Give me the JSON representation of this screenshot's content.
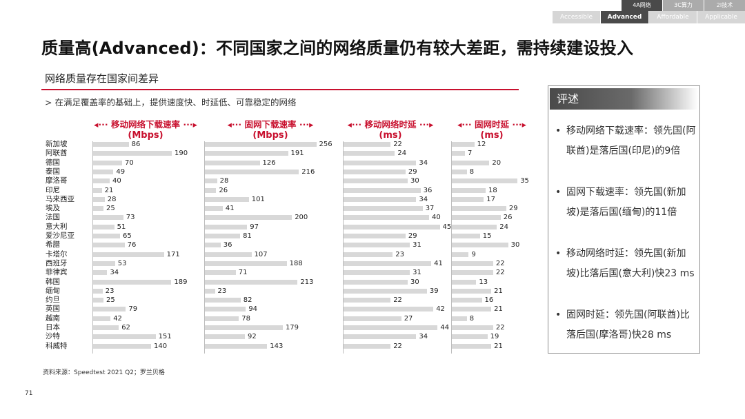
{
  "nav": {
    "top": [
      "4A网络",
      "3C算力",
      "2I技术"
    ],
    "top_active": 0,
    "bottom": [
      "Accessible",
      "Advanced",
      "Affordable",
      "Applicable"
    ],
    "bottom_active": 1
  },
  "title": "质量高(Advanced)：不同国家之间的网络质量仍有较大差距，需持续建设投入",
  "section_title": "网络质量存在国家间差异",
  "subtitle": "> 在满足覆盖率的基础上，提供速度快、时延低、可靠稳定的网络",
  "chart_data": {
    "type": "bar",
    "orientation": "horizontal",
    "categories": [
      "新加坡",
      "阿联酋",
      "德国",
      "泰国",
      "摩洛哥",
      "印尼",
      "马来西亚",
      "埃及",
      "法国",
      "意大利",
      "爱沙尼亚",
      "希腊",
      "卡塔尔",
      "西班牙",
      "菲律宾",
      "韩国",
      "缅甸",
      "约旦",
      "英国",
      "越南",
      "日本",
      "沙特",
      "科威特"
    ],
    "series": [
      {
        "name": "移动网络下载速率",
        "unit": "(Mbps)",
        "values": [
          86,
          190,
          70,
          49,
          40,
          21,
          28,
          25,
          73,
          51,
          65,
          76,
          171,
          53,
          34,
          189,
          23,
          25,
          79,
          42,
          62,
          151,
          140
        ]
      },
      {
        "name": "固网下载速率",
        "unit": "(Mbps)",
        "values": [
          256,
          191,
          126,
          216,
          28,
          26,
          101,
          41,
          200,
          97,
          81,
          36,
          107,
          188,
          71,
          213,
          23,
          82,
          94,
          78,
          179,
          92,
          143
        ]
      },
      {
        "name": "移动网络时延",
        "unit": "(ms)",
        "values": [
          22,
          24,
          34,
          29,
          30,
          36,
          34,
          37,
          40,
          45,
          29,
          31,
          23,
          41,
          31,
          30,
          39,
          22,
          42,
          27,
          44,
          34,
          22
        ]
      },
      {
        "name": "固网时延",
        "unit": "(ms)",
        "values": [
          12,
          7,
          20,
          8,
          35,
          18,
          17,
          29,
          26,
          24,
          15,
          30,
          9,
          22,
          22,
          13,
          21,
          16,
          21,
          8,
          22,
          19,
          21
        ]
      }
    ]
  },
  "source": "资料来源：Speedtest 2021 Q2；罗兰贝格",
  "page_number": "71",
  "summary": {
    "title": "评述",
    "bullet": "•",
    "items": [
      "移动网络下载速率：领先国(阿联酋)是落后国(印尼)的9倍",
      "固网下载速率：领先国(新加坡)是落后国(缅甸)的11倍",
      "移动网络时延：领先国(新加坡)比落后国(意大利)快23 ms",
      "固网时延：领先国(阿联酋)比落后国(摩洛哥)快28 ms"
    ]
  },
  "colors": {
    "accent": "#c8102e",
    "bar": "#d8d8d8",
    "nav_active": "#4a4a4a"
  }
}
